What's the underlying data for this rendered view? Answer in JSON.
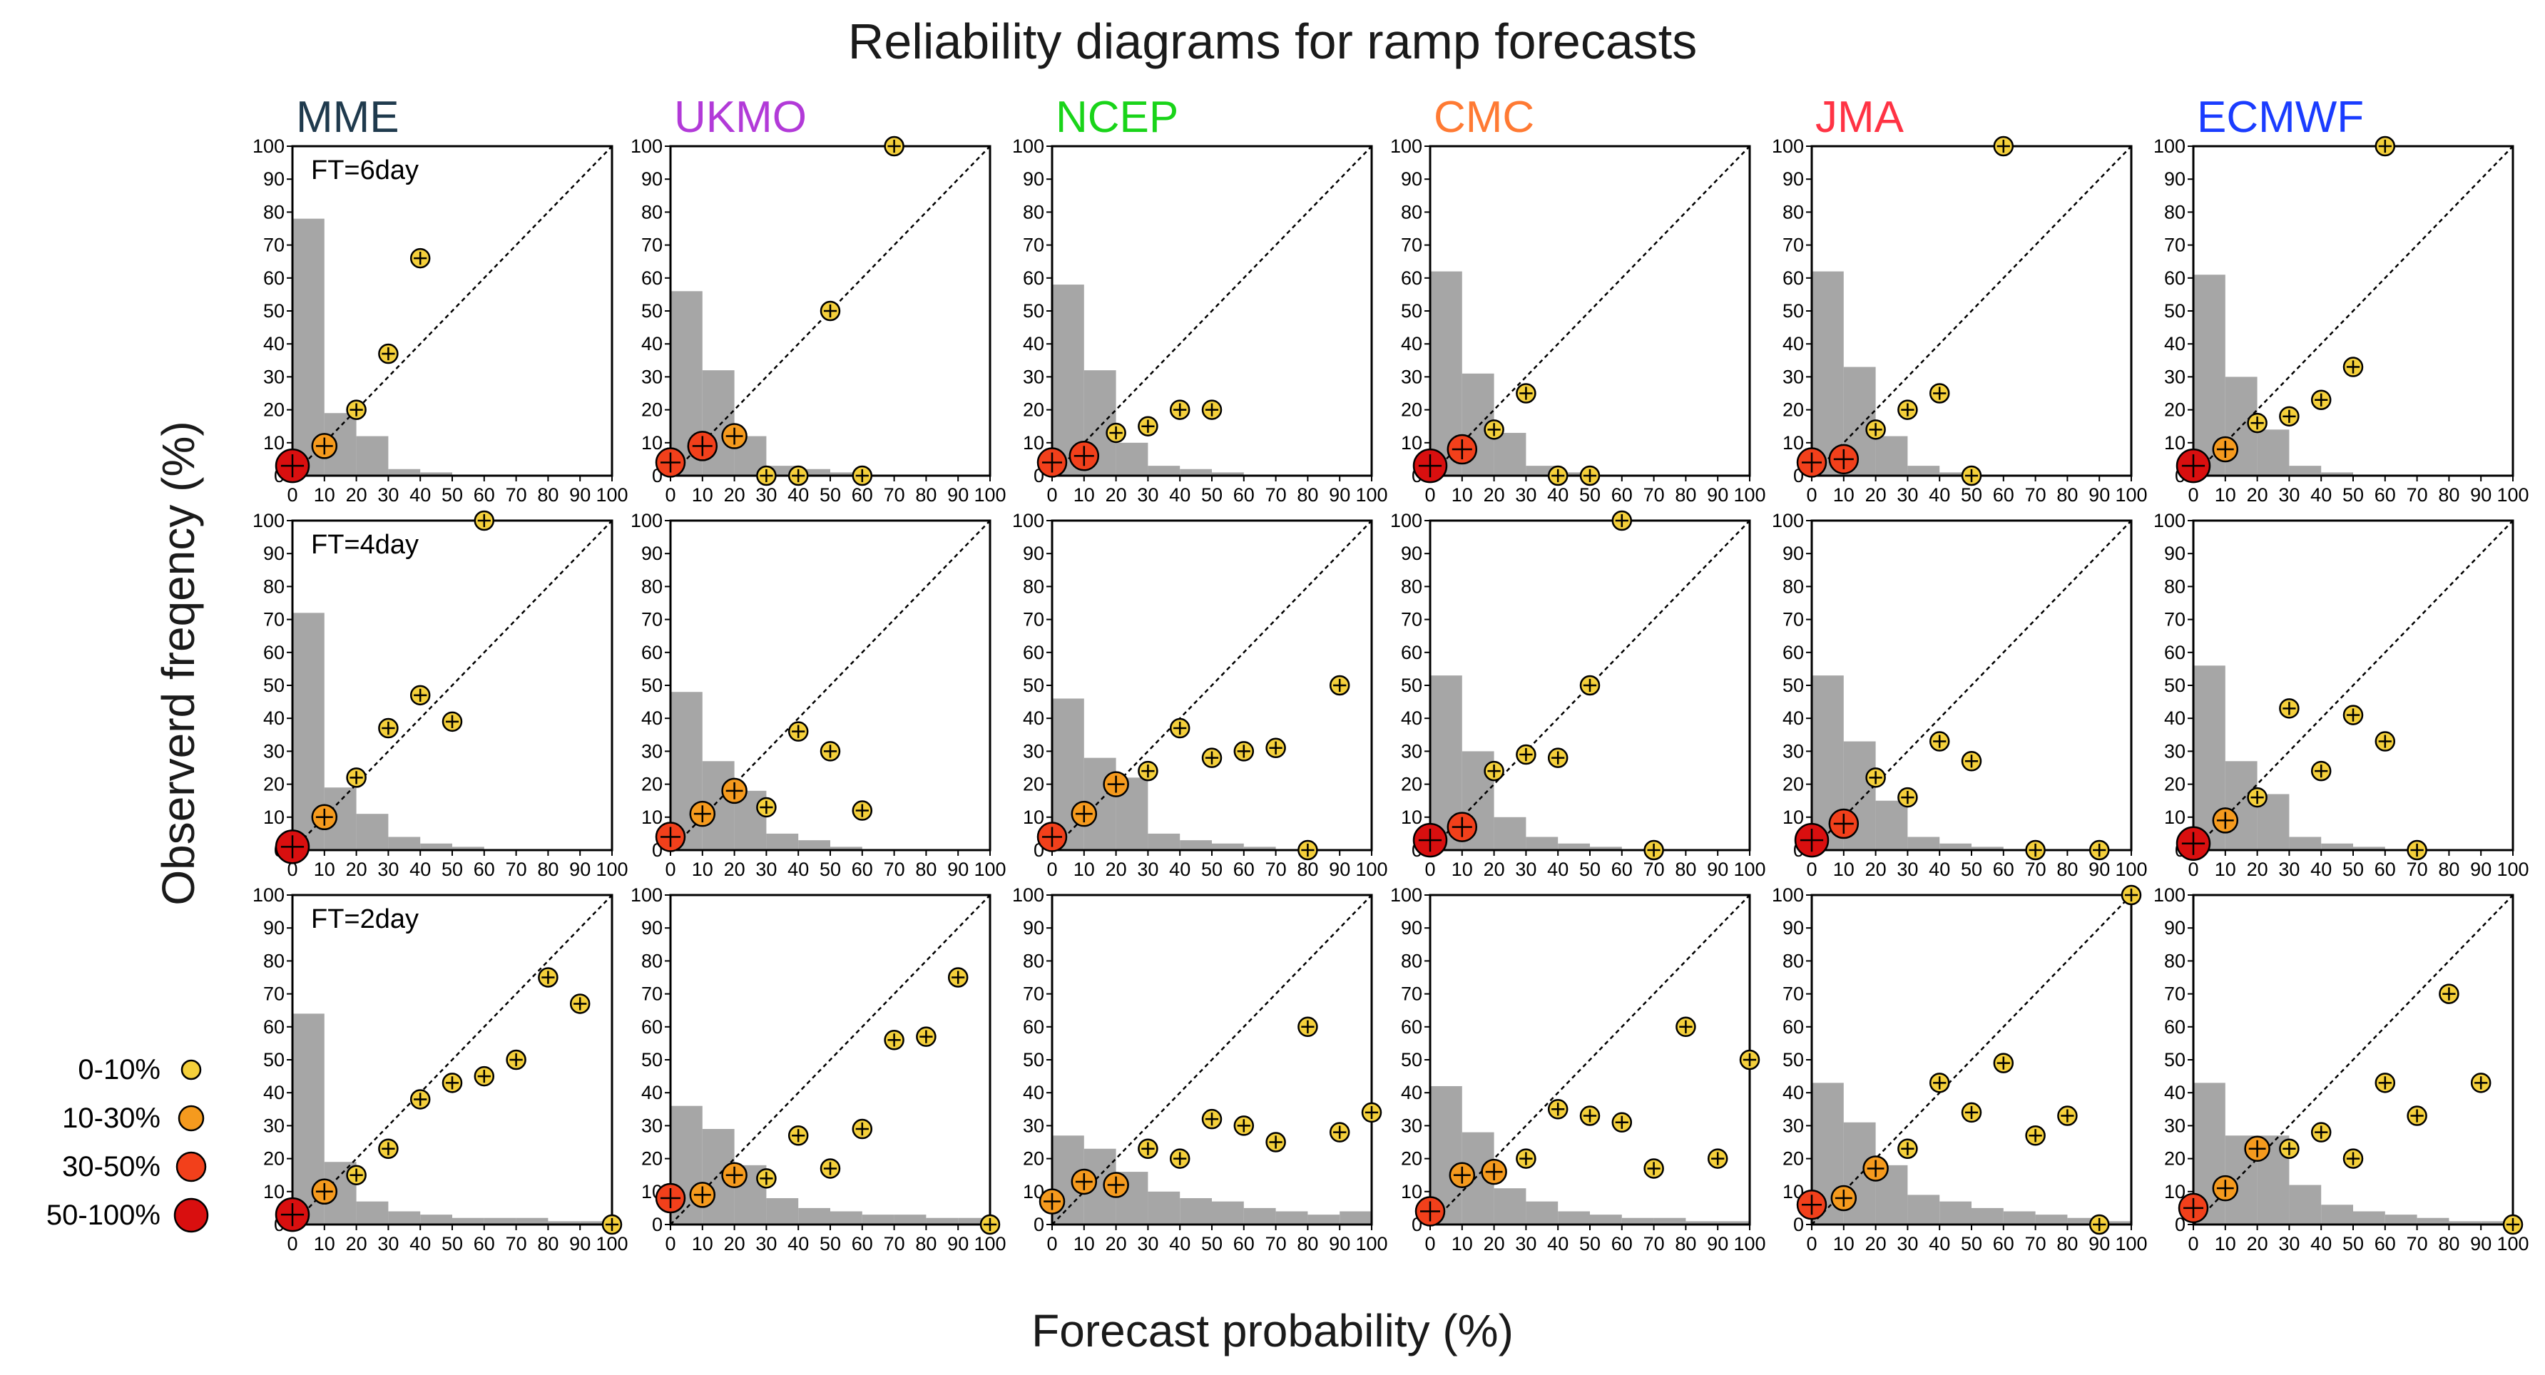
{
  "chart_data": {
    "type": "scatter",
    "title": "Reliability diagrams for ramp forecasts",
    "xlabel": "Forecast probability (%)",
    "ylabel": "Observerd freqency (%)",
    "xlim": [
      0,
      100
    ],
    "ylim": [
      0,
      100
    ],
    "xticks": [
      "0",
      "10",
      "20",
      "30",
      "40",
      "50",
      "60",
      "70",
      "80",
      "90",
      "100"
    ],
    "yticks": [
      "0",
      "10",
      "20",
      "30",
      "40",
      "50",
      "60",
      "70",
      "80",
      "90",
      "100"
    ],
    "colors": {
      "diagonal": "#000000",
      "histogram": "#a6a6a6",
      "marker_stroke": "#000000"
    },
    "models": [
      {
        "name": "MME",
        "color": "#1f3a4d"
      },
      {
        "name": "UKMO",
        "color": "#b23ad8"
      },
      {
        "name": "NCEP",
        "color": "#19d419"
      },
      {
        "name": "CMC",
        "color": "#ff7a33"
      },
      {
        "name": "JMA",
        "color": "#ff3344"
      },
      {
        "name": "ECMWF",
        "color": "#1a3cff"
      }
    ],
    "lead_times": [
      "FT=6day",
      "FT=4day",
      "FT=2day"
    ],
    "legend": {
      "placement": "bottom-left",
      "entries": [
        {
          "label": "0-10%",
          "color": "#f5d03b",
          "size": 1
        },
        {
          "label": "10-30%",
          "color": "#f59a1e",
          "size": 2
        },
        {
          "label": "30-50%",
          "color": "#f2401b",
          "size": 3
        },
        {
          "label": "50-100%",
          "color": "#d90f0f",
          "size": 4
        }
      ]
    },
    "panels": [
      [
        {
          "hist": [
            78,
            19,
            12,
            2,
            1,
            0,
            0,
            0,
            0,
            0
          ],
          "points": [
            [
              0,
              3,
              4
            ],
            [
              10,
              9,
              2
            ],
            [
              20,
              20,
              1
            ],
            [
              30,
              37,
              1
            ],
            [
              40,
              66,
              1
            ]
          ]
        },
        {
          "hist": [
            56,
            32,
            12,
            3,
            2,
            1,
            0,
            0,
            0,
            0
          ],
          "points": [
            [
              0,
              4,
              3
            ],
            [
              10,
              9,
              3
            ],
            [
              20,
              12,
              2
            ],
            [
              30,
              0,
              1
            ],
            [
              40,
              0,
              1
            ],
            [
              50,
              50,
              1
            ],
            [
              60,
              0,
              1
            ],
            [
              70,
              100,
              1
            ]
          ]
        },
        {
          "hist": [
            58,
            32,
            10,
            3,
            2,
            1,
            0,
            0,
            0,
            0
          ],
          "points": [
            [
              0,
              4,
              3
            ],
            [
              10,
              6,
              3
            ],
            [
              20,
              13,
              1
            ],
            [
              30,
              15,
              1
            ],
            [
              40,
              20,
              1
            ],
            [
              50,
              20,
              1
            ]
          ]
        },
        {
          "hist": [
            62,
            31,
            13,
            3,
            1,
            0,
            0,
            0,
            0,
            0
          ],
          "points": [
            [
              0,
              3,
              4
            ],
            [
              10,
              8,
              3
            ],
            [
              20,
              14,
              1
            ],
            [
              30,
              25,
              1
            ],
            [
              40,
              0,
              1
            ],
            [
              50,
              0,
              1
            ]
          ]
        },
        {
          "hist": [
            62,
            33,
            12,
            3,
            1,
            0,
            0,
            0,
            0,
            0
          ],
          "points": [
            [
              0,
              4,
              3
            ],
            [
              10,
              5,
              3
            ],
            [
              20,
              14,
              1
            ],
            [
              30,
              20,
              1
            ],
            [
              40,
              25,
              1
            ],
            [
              50,
              0,
              1
            ],
            [
              60,
              100,
              1
            ]
          ]
        },
        {
          "hist": [
            61,
            30,
            14,
            3,
            1,
            0,
            0,
            0,
            0,
            0
          ],
          "points": [
            [
              0,
              3,
              4
            ],
            [
              10,
              8,
              2
            ],
            [
              20,
              16,
              1
            ],
            [
              30,
              18,
              1
            ],
            [
              40,
              23,
              1
            ],
            [
              50,
              33,
              1
            ],
            [
              60,
              100,
              1
            ]
          ]
        }
      ],
      [
        {
          "hist": [
            72,
            19,
            11,
            4,
            2,
            1,
            0,
            0,
            0,
            0
          ],
          "points": [
            [
              0,
              1,
              4
            ],
            [
              10,
              10,
              2
            ],
            [
              20,
              22,
              1
            ],
            [
              30,
              37,
              1
            ],
            [
              40,
              47,
              1
            ],
            [
              50,
              39,
              1
            ],
            [
              60,
              100,
              1
            ]
          ]
        },
        {
          "hist": [
            48,
            27,
            18,
            5,
            3,
            1,
            0,
            0,
            0,
            0
          ],
          "points": [
            [
              0,
              4,
              3
            ],
            [
              10,
              11,
              2
            ],
            [
              20,
              18,
              2
            ],
            [
              30,
              13,
              1
            ],
            [
              40,
              36,
              1
            ],
            [
              50,
              30,
              1
            ],
            [
              60,
              12,
              1
            ]
          ]
        },
        {
          "hist": [
            46,
            28,
            22,
            5,
            3,
            2,
            1,
            0,
            0,
            0
          ],
          "points": [
            [
              0,
              4,
              3
            ],
            [
              10,
              11,
              2
            ],
            [
              20,
              20,
              2
            ],
            [
              30,
              24,
              1
            ],
            [
              40,
              37,
              1
            ],
            [
              50,
              28,
              1
            ],
            [
              60,
              30,
              1
            ],
            [
              70,
              31,
              1
            ],
            [
              80,
              0,
              1
            ],
            [
              90,
              50,
              1
            ]
          ]
        },
        {
          "hist": [
            53,
            30,
            10,
            4,
            2,
            1,
            0,
            0,
            0,
            0
          ],
          "points": [
            [
              0,
              3,
              4
            ],
            [
              10,
              7,
              3
            ],
            [
              20,
              24,
              1
            ],
            [
              30,
              29,
              1
            ],
            [
              40,
              28,
              1
            ],
            [
              50,
              50,
              1
            ],
            [
              60,
              100,
              1
            ],
            [
              70,
              0,
              1
            ]
          ]
        },
        {
          "hist": [
            53,
            33,
            15,
            4,
            2,
            1,
            0,
            0,
            0,
            0
          ],
          "points": [
            [
              0,
              3,
              4
            ],
            [
              10,
              8,
              3
            ],
            [
              20,
              22,
              1
            ],
            [
              30,
              16,
              1
            ],
            [
              40,
              33,
              1
            ],
            [
              50,
              27,
              1
            ],
            [
              70,
              0,
              1
            ],
            [
              90,
              0,
              1
            ]
          ]
        },
        {
          "hist": [
            56,
            27,
            17,
            4,
            2,
            1,
            0,
            0,
            0,
            0
          ],
          "points": [
            [
              0,
              2,
              4
            ],
            [
              10,
              9,
              2
            ],
            [
              20,
              16,
              1
            ],
            [
              30,
              43,
              1
            ],
            [
              40,
              24,
              1
            ],
            [
              50,
              41,
              1
            ],
            [
              60,
              33,
              1
            ],
            [
              70,
              0,
              1
            ]
          ]
        }
      ],
      [
        {
          "hist": [
            64,
            19,
            7,
            4,
            3,
            2,
            2,
            2,
            1,
            1
          ],
          "points": [
            [
              0,
              3,
              4
            ],
            [
              10,
              10,
              2
            ],
            [
              20,
              15,
              1
            ],
            [
              30,
              23,
              1
            ],
            [
              40,
              38,
              1
            ],
            [
              50,
              43,
              1
            ],
            [
              60,
              45,
              1
            ],
            [
              70,
              50,
              1
            ],
            [
              80,
              75,
              1
            ],
            [
              90,
              67,
              1
            ],
            [
              100,
              0,
              1
            ]
          ]
        },
        {
          "hist": [
            36,
            29,
            18,
            8,
            5,
            4,
            3,
            3,
            2,
            2
          ],
          "points": [
            [
              0,
              8,
              3
            ],
            [
              10,
              9,
              2
            ],
            [
              20,
              15,
              2
            ],
            [
              30,
              14,
              1
            ],
            [
              40,
              27,
              1
            ],
            [
              50,
              17,
              1
            ],
            [
              60,
              29,
              1
            ],
            [
              70,
              56,
              1
            ],
            [
              80,
              57,
              1
            ],
            [
              90,
              75,
              1
            ],
            [
              100,
              0,
              1
            ]
          ]
        },
        {
          "hist": [
            27,
            23,
            16,
            10,
            8,
            7,
            5,
            4,
            3,
            4
          ],
          "points": [
            [
              0,
              7,
              2
            ],
            [
              10,
              13,
              2
            ],
            [
              20,
              12,
              2
            ],
            [
              30,
              23,
              1
            ],
            [
              40,
              20,
              1
            ],
            [
              50,
              32,
              1
            ],
            [
              60,
              30,
              1
            ],
            [
              70,
              25,
              1
            ],
            [
              80,
              60,
              1
            ],
            [
              90,
              28,
              1
            ],
            [
              100,
              34,
              1
            ]
          ]
        },
        {
          "hist": [
            42,
            28,
            11,
            7,
            4,
            3,
            2,
            2,
            1,
            1
          ],
          "points": [
            [
              0,
              4,
              3
            ],
            [
              10,
              15,
              2
            ],
            [
              20,
              16,
              2
            ],
            [
              30,
              20,
              1
            ],
            [
              40,
              35,
              1
            ],
            [
              50,
              33,
              1
            ],
            [
              60,
              31,
              1
            ],
            [
              70,
              17,
              1
            ],
            [
              80,
              60,
              1
            ],
            [
              90,
              20,
              1
            ],
            [
              100,
              50,
              1
            ]
          ]
        },
        {
          "hist": [
            43,
            31,
            18,
            9,
            7,
            5,
            4,
            3,
            2,
            1
          ],
          "points": [
            [
              0,
              6,
              3
            ],
            [
              10,
              8,
              2
            ],
            [
              20,
              17,
              2
            ],
            [
              30,
              23,
              1
            ],
            [
              40,
              43,
              1
            ],
            [
              50,
              34,
              1
            ],
            [
              60,
              49,
              1
            ],
            [
              70,
              27,
              1
            ],
            [
              80,
              33,
              1
            ],
            [
              90,
              0,
              1
            ],
            [
              100,
              100,
              1
            ]
          ]
        },
        {
          "hist": [
            43,
            27,
            27,
            12,
            6,
            4,
            3,
            2,
            1,
            1
          ],
          "points": [
            [
              0,
              5,
              3
            ],
            [
              10,
              11,
              2
            ],
            [
              20,
              23,
              2
            ],
            [
              30,
              23,
              1
            ],
            [
              40,
              28,
              1
            ],
            [
              50,
              20,
              1
            ],
            [
              60,
              43,
              1
            ],
            [
              70,
              33,
              1
            ],
            [
              80,
              70,
              1
            ],
            [
              90,
              43,
              1
            ],
            [
              100,
              0,
              1
            ]
          ]
        }
      ]
    ]
  }
}
